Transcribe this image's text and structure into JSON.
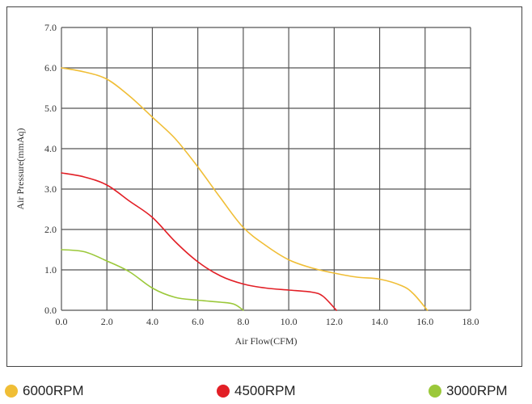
{
  "chart_data": {
    "type": "line",
    "xlabel": "Air Flow(CFM)",
    "ylabel": "Air Pressure(mmAq)",
    "xlim": [
      0,
      18
    ],
    "ylim": [
      0,
      7
    ],
    "xticks": [
      "0.0",
      "2.0",
      "4.0",
      "6.0",
      "8.0",
      "10.0",
      "12.0",
      "14.0",
      "16.0",
      "18.0"
    ],
    "yticks": [
      "0.0",
      "1.0",
      "2.0",
      "3.0",
      "4.0",
      "5.0",
      "6.0",
      "7.0"
    ],
    "grid": true,
    "legend_position": "bottom",
    "series": [
      {
        "name": "6000RPM",
        "color": "#f0be36",
        "points": [
          [
            0,
            6.0
          ],
          [
            1.0,
            5.9
          ],
          [
            2.0,
            5.72
          ],
          [
            3.0,
            5.3
          ],
          [
            4.0,
            4.78
          ],
          [
            5.0,
            4.25
          ],
          [
            6.0,
            3.55
          ],
          [
            7.0,
            2.78
          ],
          [
            8.0,
            2.05
          ],
          [
            9.0,
            1.6
          ],
          [
            10.0,
            1.25
          ],
          [
            11.0,
            1.05
          ],
          [
            12.0,
            0.92
          ],
          [
            13.0,
            0.82
          ],
          [
            14.0,
            0.77
          ],
          [
            15.0,
            0.6
          ],
          [
            15.5,
            0.4
          ],
          [
            16.1,
            0.0
          ]
        ]
      },
      {
        "name": "4500RPM",
        "color": "#e21f26",
        "points": [
          [
            0,
            3.4
          ],
          [
            1.0,
            3.3
          ],
          [
            2.0,
            3.1
          ],
          [
            3.0,
            2.7
          ],
          [
            4.0,
            2.3
          ],
          [
            5.0,
            1.7
          ],
          [
            6.0,
            1.2
          ],
          [
            7.0,
            0.85
          ],
          [
            8.0,
            0.65
          ],
          [
            9.0,
            0.55
          ],
          [
            10.0,
            0.5
          ],
          [
            11.0,
            0.45
          ],
          [
            11.5,
            0.35
          ],
          [
            12.1,
            0.0
          ]
        ]
      },
      {
        "name": "3000RPM",
        "color": "#9bc83a",
        "points": [
          [
            0,
            1.5
          ],
          [
            1.0,
            1.45
          ],
          [
            2.0,
            1.22
          ],
          [
            3.0,
            0.95
          ],
          [
            4.0,
            0.55
          ],
          [
            5.0,
            0.32
          ],
          [
            6.0,
            0.25
          ],
          [
            7.0,
            0.2
          ],
          [
            7.6,
            0.15
          ],
          [
            8.0,
            0.0
          ]
        ]
      }
    ]
  }
}
